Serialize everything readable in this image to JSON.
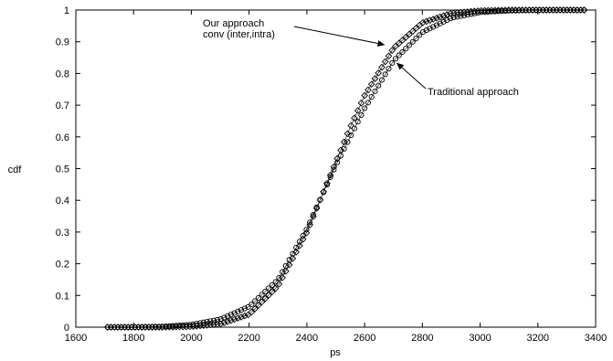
{
  "chart_data": {
    "type": "line",
    "title": "",
    "xlabel": "ps",
    "ylabel": "cdf",
    "xlim": [
      1600,
      3400
    ],
    "ylim": [
      0,
      1
    ],
    "xticks": [
      1600,
      1800,
      2000,
      2200,
      2400,
      2600,
      2800,
      3000,
      3200,
      3400
    ],
    "yticks": [
      0,
      0.1,
      0.2,
      0.3,
      0.4,
      0.5,
      0.6,
      0.7,
      0.8,
      0.9,
      1
    ],
    "xtick_labels": [
      "1600",
      "1800",
      "2000",
      "2200",
      "2400",
      "2600",
      "2800",
      "3000",
      "3200",
      "3400"
    ],
    "ytick_labels": [
      "0",
      "0.1",
      "0.2",
      "0.3",
      "0.4",
      "0.5",
      "0.6",
      "0.7",
      "0.8",
      "0.9",
      "1"
    ],
    "grid": false,
    "legend": "none",
    "series": [
      {
        "marker": "circle",
        "color": "#000000",
        "x_start": 1710,
        "x_end": 3360,
        "points": 140,
        "x": [
          1710,
          1800,
          1900,
          2000,
          2100,
          2200,
          2300,
          2400,
          2450,
          2500,
          2550,
          2600,
          2700,
          2800,
          2900,
          3000,
          3100,
          3200,
          3360
        ],
        "y": [
          0.0,
          0.0,
          0.002,
          0.008,
          0.025,
          0.065,
          0.15,
          0.31,
          0.41,
          0.51,
          0.6,
          0.69,
          0.84,
          0.93,
          0.975,
          0.993,
          0.998,
          1.0,
          1.0
        ]
      },
      {
        "marker": "diamond",
        "color": "#000000",
        "x_start": 1710,
        "x_end": 3360,
        "points": 140,
        "x": [
          1710,
          1800,
          1900,
          2000,
          2100,
          2200,
          2300,
          2400,
          2450,
          2500,
          2550,
          2600,
          2700,
          2800,
          2900,
          3000,
          3100,
          3200,
          3360
        ],
        "y": [
          0.0,
          0.0,
          0.0,
          0.002,
          0.01,
          0.04,
          0.13,
          0.3,
          0.41,
          0.52,
          0.63,
          0.73,
          0.88,
          0.96,
          0.99,
          0.998,
          1.0,
          1.0,
          1.0
        ]
      }
    ],
    "annotations": [
      {
        "text": "Our approach",
        "lines": [
          "Our approach",
          "conv (inter,intra)"
        ],
        "target": [
          2680,
          0.885
        ],
        "target_series": 1
      },
      {
        "text": "Traditional approach",
        "lines": [
          "Traditional approach"
        ],
        "target": [
          2700,
          0.835
        ],
        "target_series": 0
      }
    ]
  }
}
